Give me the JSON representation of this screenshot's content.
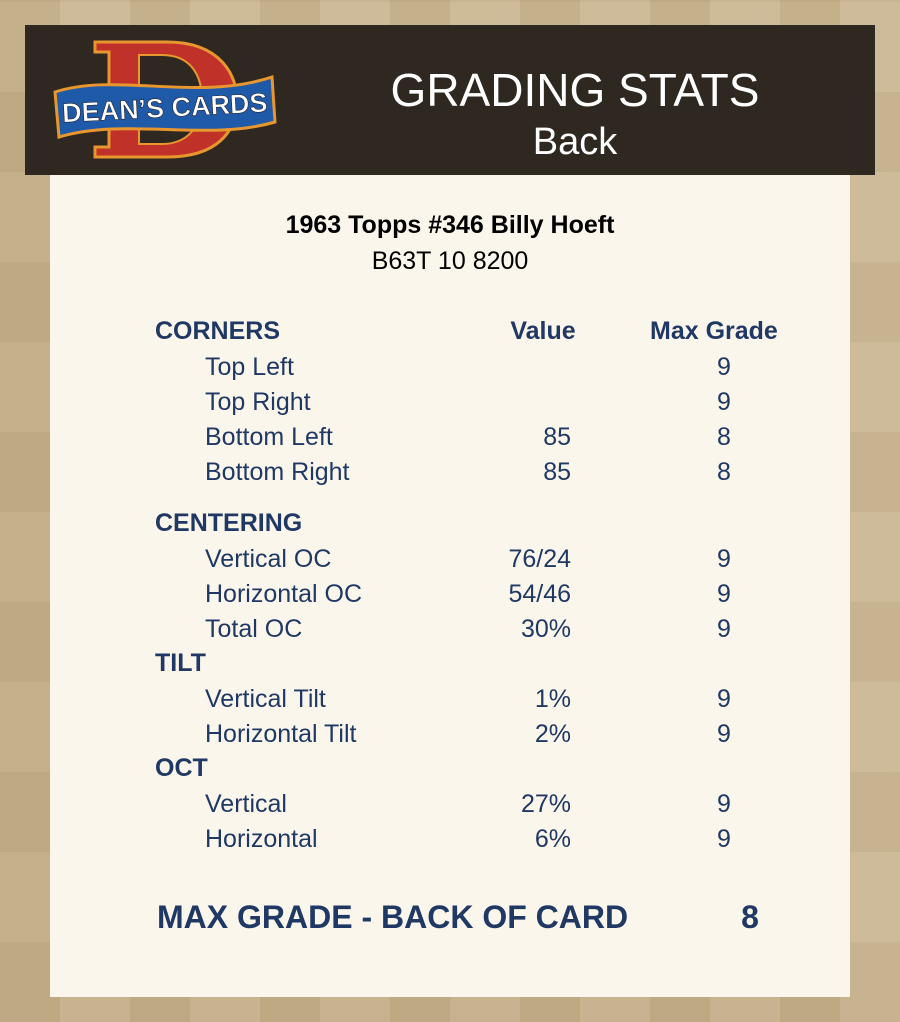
{
  "header": {
    "logo_text": "DEAN'S CARDS",
    "title": "GRADING STATS",
    "subtitle": "Back"
  },
  "card": {
    "name": "1963 Topps #346 Billy Hoeft",
    "code": "B63T 10 8200"
  },
  "columns": {
    "value": "Value",
    "max_grade": "Max Grade"
  },
  "sections": [
    {
      "title": "CORNERS",
      "rows": [
        {
          "label": "Top Left",
          "value": "",
          "max_grade": "9"
        },
        {
          "label": "Top Right",
          "value": "",
          "max_grade": "9"
        },
        {
          "label": "Bottom Left",
          "value": "85",
          "max_grade": "8"
        },
        {
          "label": "Bottom Right",
          "value": "85",
          "max_grade": "8"
        }
      ]
    },
    {
      "title": "CENTERING",
      "rows": [
        {
          "label": "Vertical OC",
          "value": "76/24",
          "max_grade": "9"
        },
        {
          "label": "Horizontal OC",
          "value": "54/46",
          "max_grade": "9"
        },
        {
          "label": "Total OC",
          "value": "30%",
          "max_grade": "9"
        }
      ]
    },
    {
      "title": "TILT",
      "rows": [
        {
          "label": "Vertical Tilt",
          "value": "1%",
          "max_grade": "9"
        },
        {
          "label": "Horizontal Tilt",
          "value": "2%",
          "max_grade": "9"
        }
      ]
    },
    {
      "title": "OCT",
      "rows": [
        {
          "label": "Vertical",
          "value": "27%",
          "max_grade": "9"
        },
        {
          "label": "Horizontal",
          "value": "6%",
          "max_grade": "9"
        }
      ]
    }
  ],
  "summary": {
    "label": "MAX GRADE - BACK OF CARD",
    "value": "8"
  },
  "colors": {
    "text": "#1f3864",
    "header_bg": "#2e2820",
    "card_bg": "#fbf6ec",
    "page_bg": "#c9b48e"
  }
}
